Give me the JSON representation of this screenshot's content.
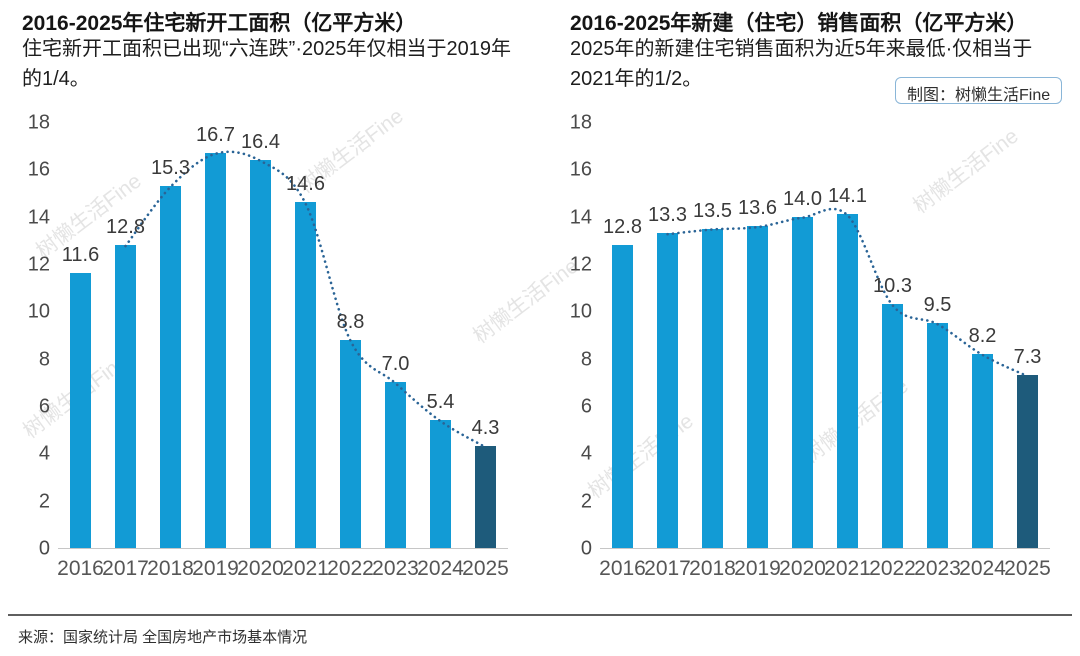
{
  "page": {
    "credit_badge": "制图：树懒生活Fine",
    "source_note": "来源：国家统计局 全国房地产市场基本情况",
    "watermark": "树懒生活Fine"
  },
  "chart_data": [
    {
      "type": "bar",
      "title": "2016-2025年住宅新开工面积（亿平方米）",
      "subtitle": "住宅新开工面积已出现“六连跌”·2025年仅相当于2019年的1/4。",
      "categories": [
        "2016",
        "2017",
        "2018",
        "2019",
        "2020",
        "2021",
        "2022",
        "2023",
        "2024",
        "2025"
      ],
      "values": [
        11.6,
        12.8,
        15.3,
        16.7,
        16.4,
        14.6,
        8.8,
        7.0,
        5.4,
        4.3
      ],
      "labels": [
        "11.6",
        "12.8",
        "15.3",
        "16.7",
        "16.4",
        "14.6",
        "8.8",
        "7.0",
        "5.4",
        "4.3"
      ],
      "xlabel": "",
      "ylabel": "",
      "ylim": [
        0,
        18
      ],
      "yticks": [
        0,
        2,
        4,
        6,
        8,
        10,
        12,
        14,
        16,
        18
      ],
      "grid": false,
      "bar_color": "#129BD5",
      "highlight_index": 9,
      "highlight_color": "#1E5B7B",
      "trend_line": {
        "show": true,
        "start_index": 1,
        "style": "dotted",
        "color": "#2A6496"
      }
    },
    {
      "type": "bar",
      "title": "2016-2025年新建（住宅）销售面积（亿平方米）",
      "subtitle": "2025年的新建住宅销售面积为近5年来最低·仅相当于2021年的1/2。",
      "categories": [
        "2016",
        "2017",
        "2018",
        "2019",
        "2020",
        "2021",
        "2022",
        "2023",
        "2024",
        "2025"
      ],
      "values": [
        12.8,
        13.3,
        13.5,
        13.6,
        14.0,
        14.1,
        10.3,
        9.5,
        8.2,
        7.3
      ],
      "labels": [
        "12.8",
        "13.3",
        "13.5",
        "13.6",
        "14.0",
        "14.1",
        "10.3",
        "9.5",
        "8.2",
        "7.3"
      ],
      "xlabel": "",
      "ylabel": "",
      "ylim": [
        0,
        18
      ],
      "yticks": [
        0,
        2,
        4,
        6,
        8,
        10,
        12,
        14,
        16,
        18
      ],
      "grid": false,
      "bar_color": "#129BD5",
      "highlight_index": 9,
      "highlight_color": "#1E5B7B",
      "trend_line": {
        "show": true,
        "start_index": 1,
        "style": "dotted",
        "color": "#2A6496"
      }
    }
  ]
}
